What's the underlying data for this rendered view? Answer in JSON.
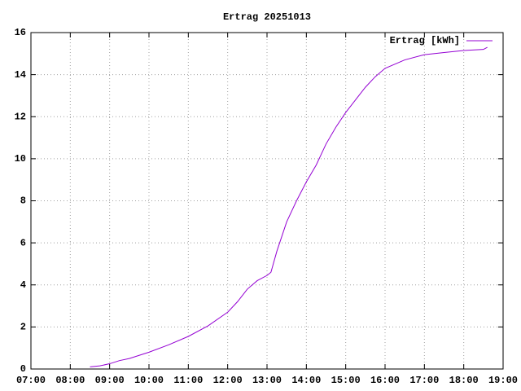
{
  "chart_data": {
    "type": "line",
    "title": "Ertrag 20251013",
    "x": [
      8.5,
      8.75,
      9,
      9.25,
      9.5,
      10,
      10.5,
      11,
      11.5,
      12,
      12.25,
      12.5,
      12.75,
      13,
      13.1,
      13.25,
      13.5,
      13.75,
      14,
      14.25,
      14.5,
      14.75,
      15,
      15.25,
      15.5,
      15.75,
      16,
      16.5,
      17,
      17.5,
      18,
      18.5,
      18.6
    ],
    "series": [
      {
        "name": "Ertrag [kWh]",
        "color": "#9400d3",
        "values": [
          0.1,
          0.15,
          0.25,
          0.4,
          0.5,
          0.8,
          1.15,
          1.55,
          2.05,
          2.7,
          3.2,
          3.8,
          4.2,
          4.45,
          4.6,
          5.6,
          7.0,
          8.0,
          8.9,
          9.7,
          10.7,
          11.5,
          12.2,
          12.8,
          13.4,
          13.9,
          14.3,
          14.7,
          14.95,
          15.05,
          15.15,
          15.2,
          15.3
        ]
      }
    ],
    "xlim": [
      7,
      19
    ],
    "xticks": [
      {
        "value": 7,
        "label": "07:00"
      },
      {
        "value": 8,
        "label": "08:00"
      },
      {
        "value": 9,
        "label": "09:00"
      },
      {
        "value": 10,
        "label": "10:00"
      },
      {
        "value": 11,
        "label": "11:00"
      },
      {
        "value": 12,
        "label": "12:00"
      },
      {
        "value": 13,
        "label": "13:00"
      },
      {
        "value": 14,
        "label": "14:00"
      },
      {
        "value": 15,
        "label": "15:00"
      },
      {
        "value": 16,
        "label": "16:00"
      },
      {
        "value": 17,
        "label": "17:00"
      },
      {
        "value": 18,
        "label": "18:00"
      },
      {
        "value": 19,
        "label": "19:00"
      }
    ],
    "ylim": [
      0,
      16
    ],
    "yticks": [
      0,
      2,
      4,
      6,
      8,
      10,
      12,
      14,
      16
    ],
    "grid": true,
    "legend": "top-right"
  }
}
